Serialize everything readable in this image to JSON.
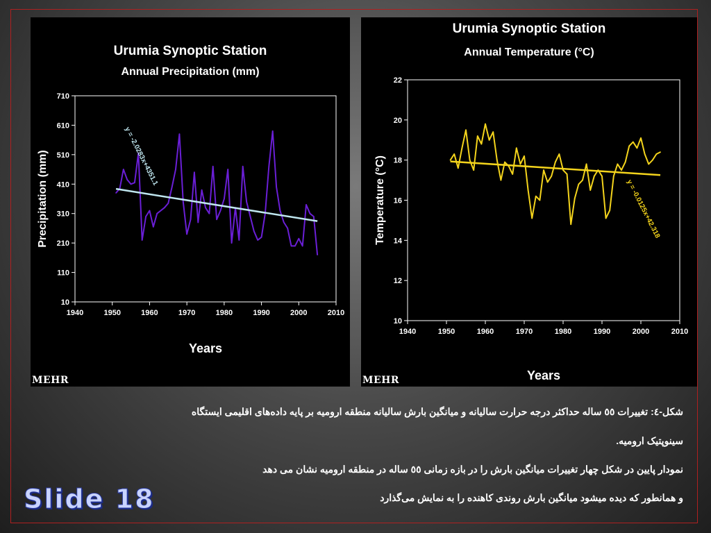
{
  "watermark": "MEHR",
  "slide_label": "Slide 18",
  "caption_lines": [
    "شکل-٤: تغییرات ٥٥ ساله حداکثر درجه حرارت سالیانه و میانگین بارش سالیانه منطقه ارومیه بر پایه داده‌های اقلیمی ایستگاه",
    "سینوپتیک ارومیه.",
    "نمودار پایین در شکل چهار تغییرات میانگین بارش را در بازه زمانی ٥٥ ساله در منطقه ارومیه نشان می دهد",
    "و همانطور که دیده میشود میانگین بارش روندی کاهنده را به نمایش می‌گذارد"
  ],
  "chart_data": [
    {
      "type": "line",
      "title": "Urumia Synoptic Station",
      "subtitle": "Annual Precipitation (mm)",
      "xlabel": "Years",
      "ylabel": "Precipitation (mm)",
      "xlim": [
        1940,
        2010
      ],
      "ylim": [
        10,
        710
      ],
      "xticks": [
        1940,
        1950,
        1960,
        1970,
        1980,
        1990,
        2000,
        2010
      ],
      "yticks": [
        10,
        110,
        210,
        310,
        410,
        510,
        610,
        710
      ],
      "grid": false,
      "line_color": "#6a1fd6",
      "trend_color": "#bfe6ef",
      "trendline": {
        "equation": "y = -2.0283x+4351.1",
        "slope": -2.0283,
        "intercept": 4351.1,
        "x_start": 1951,
        "x_end": 2005
      },
      "series": [
        {
          "x": [
            1951,
            1952,
            1953,
            1954,
            1955,
            1956,
            1957,
            1958,
            1959,
            1960,
            1961,
            1962,
            1963,
            1964,
            1965,
            1966,
            1967,
            1968,
            1969,
            1970,
            1971,
            1972,
            1973,
            1974,
            1975,
            1976,
            1977,
            1978,
            1979,
            1980,
            1981,
            1982,
            1983,
            1984,
            1985,
            1986,
            1987,
            1988,
            1989,
            1990,
            1991,
            1992,
            1993,
            1994,
            1995,
            1996,
            1997,
            1998,
            1999,
            2000,
            2001,
            2002,
            2003,
            2004,
            2005
          ],
          "y": [
            380,
            395,
            460,
            425,
            410,
            415,
            515,
            220,
            300,
            320,
            265,
            310,
            320,
            330,
            345,
            400,
            460,
            580,
            350,
            240,
            290,
            450,
            280,
            390,
            330,
            310,
            470,
            290,
            320,
            360,
            460,
            210,
            330,
            220,
            470,
            350,
            300,
            250,
            220,
            230,
            310,
            470,
            590,
            400,
            320,
            280,
            260,
            200,
            200,
            225,
            200,
            340,
            310,
            300,
            170
          ]
        }
      ]
    },
    {
      "type": "line",
      "title": "Urumia Synoptic Station",
      "subtitle": "Annual Temperature (°C)",
      "xlabel": "Years",
      "ylabel": "Temperature (°C)",
      "xlim": [
        1940,
        2010
      ],
      "ylim": [
        10,
        22
      ],
      "xticks": [
        1940,
        1950,
        1960,
        1970,
        1980,
        1990,
        2000,
        2010
      ],
      "yticks": [
        10,
        12,
        14,
        16,
        18,
        20,
        22
      ],
      "grid": false,
      "line_color": "#f4d41c",
      "trend_color": "#f4d41c",
      "trendline": {
        "equation": "y = -0.0125x+42.318",
        "slope": -0.0125,
        "intercept": 42.318,
        "x_start": 1951,
        "x_end": 2005
      },
      "series": [
        {
          "x": [
            1951,
            1952,
            1953,
            1954,
            1955,
            1956,
            1957,
            1958,
            1959,
            1960,
            1961,
            1962,
            1963,
            1964,
            1965,
            1966,
            1967,
            1968,
            1969,
            1970,
            1971,
            1972,
            1973,
            1974,
            1975,
            1976,
            1977,
            1978,
            1979,
            1980,
            1981,
            1982,
            1983,
            1984,
            1985,
            1986,
            1987,
            1988,
            1989,
            1990,
            1991,
            1992,
            1993,
            1994,
            1995,
            1996,
            1997,
            1998,
            1999,
            2000,
            2001,
            2002,
            2003,
            2004,
            2005
          ],
          "y": [
            18.0,
            18.3,
            17.6,
            18.6,
            19.5,
            18.0,
            17.5,
            19.2,
            18.8,
            19.8,
            19.0,
            19.4,
            18.0,
            17.0,
            17.9,
            17.7,
            17.3,
            18.6,
            17.8,
            18.2,
            16.5,
            15.1,
            16.2,
            16.0,
            17.5,
            16.9,
            17.2,
            17.9,
            18.3,
            17.5,
            17.3,
            14.8,
            16.1,
            16.8,
            17.0,
            17.8,
            16.5,
            17.2,
            17.5,
            17.2,
            15.1,
            15.5,
            17.2,
            17.8,
            17.5,
            17.9,
            18.7,
            18.9,
            18.6,
            19.1,
            18.3,
            17.8,
            18.0,
            18.3,
            18.4
          ]
        }
      ]
    }
  ]
}
